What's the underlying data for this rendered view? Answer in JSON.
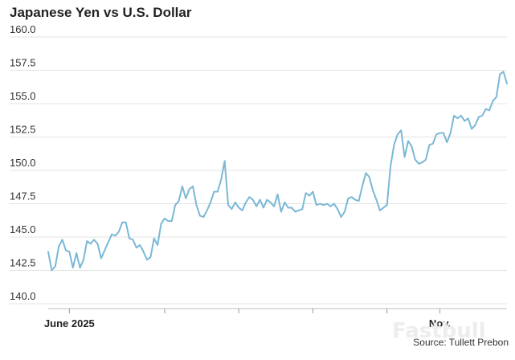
{
  "chart_data": {
    "type": "line",
    "title": "Japanese Yen vs U.S. Dollar",
    "xlabel": "",
    "ylabel": "",
    "ylim": [
      140.0,
      160.0
    ],
    "yticks": [
      "140.0",
      "142.5",
      "145.0",
      "147.5",
      "150.0",
      "152.5",
      "155.0",
      "157.5",
      "160.0"
    ],
    "xtick_labels": [
      {
        "label": "June 2025",
        "index": 6
      },
      {
        "label": "Nov.",
        "index": 111
      }
    ],
    "unlabeled_xtick_indices": [
      33,
      54,
      75,
      96
    ],
    "grid": true,
    "legend": "none",
    "line_color": "#7ab8d6",
    "series": [
      {
        "values": [
          143.9,
          142.5,
          142.8,
          144.3,
          144.8,
          144.0,
          143.9,
          142.7,
          143.8,
          142.7,
          143.3,
          144.7,
          144.5,
          144.8,
          144.5,
          143.4,
          144.0,
          144.6,
          145.2,
          145.1,
          145.4,
          146.1,
          146.1,
          144.9,
          144.8,
          144.2,
          144.4,
          143.9,
          143.3,
          143.5,
          144.9,
          144.4,
          146.0,
          146.4,
          146.2,
          146.2,
          147.4,
          147.7,
          148.8,
          147.9,
          148.6,
          148.8,
          147.4,
          146.6,
          146.5,
          147.0,
          147.6,
          148.4,
          148.4,
          149.3,
          150.7,
          147.4,
          147.1,
          147.6,
          147.2,
          147.0,
          147.6,
          148.0,
          147.8,
          147.3,
          147.8,
          147.2,
          147.8,
          147.6,
          147.3,
          148.2,
          146.9,
          147.6,
          147.2,
          147.2,
          146.9,
          147.0,
          147.1,
          148.3,
          148.1,
          148.4,
          147.4,
          147.5,
          147.4,
          147.5,
          147.3,
          147.5,
          147.1,
          146.5,
          146.9,
          147.9,
          148.0,
          147.8,
          147.7,
          148.8,
          149.8,
          149.5,
          148.5,
          147.8,
          147.0,
          147.2,
          147.4,
          150.3,
          151.9,
          152.7,
          153.0,
          151.0,
          152.2,
          151.8,
          150.8,
          150.5,
          150.6,
          150.8,
          151.9,
          152.0,
          152.7,
          152.8,
          152.8,
          152.1,
          152.8,
          154.1,
          153.9,
          154.1,
          153.7,
          153.9,
          153.1,
          153.4,
          154.0,
          154.1,
          154.6,
          154.5,
          155.2,
          155.5,
          157.2,
          157.4,
          156.5
        ]
      }
    ]
  },
  "source": "Source: Tullett Prebon",
  "watermark": "Fastbull"
}
